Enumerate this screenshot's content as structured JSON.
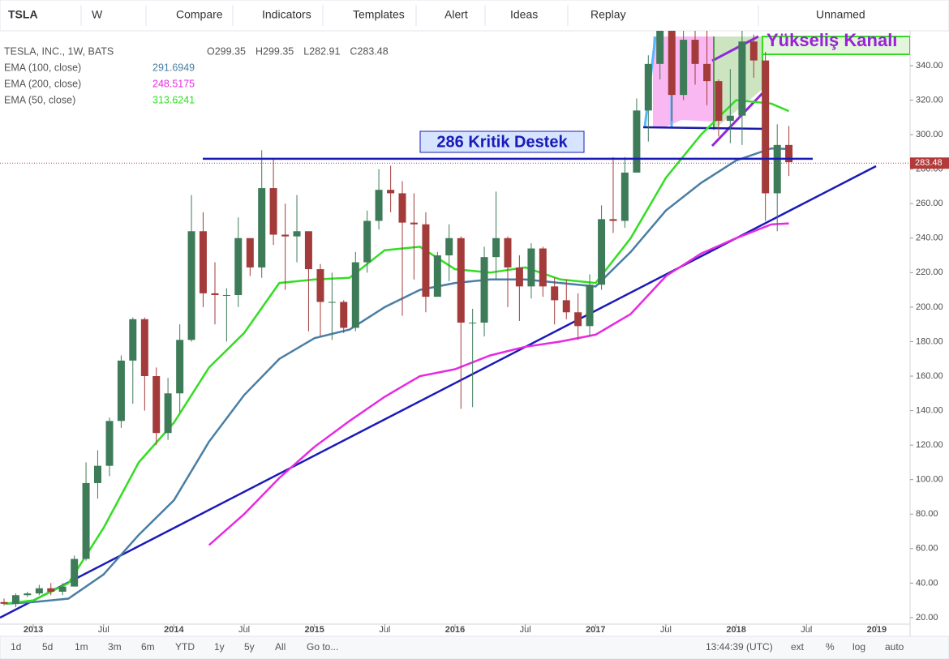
{
  "toolbar": {
    "symbol": "TSLA",
    "interval": "W",
    "buttons": [
      "Compare",
      "Indicators",
      "Templates",
      "Alert",
      "Ideas",
      "Replay"
    ],
    "layout": "Unnamed"
  },
  "bottom_bar": {
    "ranges": [
      "1d",
      "5d",
      "1m",
      "3m",
      "6m",
      "YTD",
      "1y",
      "5y",
      "All"
    ],
    "goto": "Go to...",
    "time": "13:44:39 (UTC)",
    "options": [
      "ext",
      "%",
      "log",
      "auto"
    ]
  },
  "chart_data": {
    "type": "candlestick",
    "title": "TESLA, INC., 1W, BATS",
    "ohlc": [
      {
        "key": "O",
        "value": 299.35
      },
      {
        "key": "H",
        "value": 299.35
      },
      {
        "key": "L",
        "value": 282.91
      },
      {
        "key": "C",
        "value": 283.48
      }
    ],
    "last_price": 283.48,
    "up_color": "#3d7b59",
    "down_color": "#a33b3b",
    "xlim": [
      2012.763,
      2019.237
    ],
    "xticks": [
      2013,
      {
        "value": 2013.5,
        "label": "Jul"
      },
      2014,
      {
        "value": 2014.5,
        "label": "Jul"
      },
      2015,
      {
        "value": 2015.5,
        "label": "Jul"
      },
      2016,
      {
        "value": 2016.5,
        "label": "Jul"
      },
      2017,
      {
        "value": 2017.5,
        "label": "Jul"
      },
      2018,
      {
        "value": 2018.5,
        "label": "Jul"
      },
      2019
    ],
    "ylim": [
      16.2,
      360.2
    ],
    "yticks": [
      {
        "value": 20,
        "label": "20.00"
      },
      {
        "value": 40,
        "label": "40.00"
      },
      {
        "value": 60,
        "label": "60.00"
      },
      {
        "value": 80,
        "label": "80.00"
      },
      {
        "value": 100,
        "label": "100.00"
      },
      {
        "value": 120,
        "label": "120.00"
      },
      {
        "value": 140,
        "label": "140.00"
      },
      {
        "value": 160,
        "label": "160.00"
      },
      {
        "value": 180,
        "label": "180.00"
      },
      {
        "value": 200,
        "label": "200.00"
      },
      {
        "value": 220,
        "label": "220.00"
      },
      {
        "value": 240,
        "label": "240.00"
      },
      {
        "value": 260,
        "label": "260.00"
      },
      {
        "value": 280,
        "label": "280.00"
      },
      {
        "value": 300,
        "label": "300.00"
      },
      {
        "value": 320,
        "label": "320.00"
      },
      {
        "value": 340,
        "label": "340.00"
      }
    ],
    "grid": false,
    "x": [
      2012.792,
      2012.875,
      2012.958,
      2013.042,
      2013.125,
      2013.208,
      2013.292,
      2013.375,
      2013.458,
      2013.542,
      2013.625,
      2013.708,
      2013.792,
      2013.875,
      2013.958,
      2014.042,
      2014.125,
      2014.208,
      2014.292,
      2014.375,
      2014.458,
      2014.542,
      2014.625,
      2014.708,
      2014.792,
      2014.875,
      2014.958,
      2015.042,
      2015.125,
      2015.208,
      2015.292,
      2015.375,
      2015.458,
      2015.542,
      2015.625,
      2015.708,
      2015.792,
      2015.875,
      2015.958,
      2016.042,
      2016.125,
      2016.208,
      2016.292,
      2016.375,
      2016.458,
      2016.542,
      2016.625,
      2016.708,
      2016.792,
      2016.875,
      2016.958,
      2017.042,
      2017.125,
      2017.208,
      2017.292,
      2017.375,
      2017.458,
      2017.542,
      2017.625,
      2017.708,
      2017.792,
      2017.875,
      2017.958,
      2018.042,
      2018.125,
      2018.208,
      2018.292,
      2018.375
    ],
    "open": [
      29,
      28,
      33,
      34,
      37,
      35,
      38,
      54,
      98,
      108,
      134,
      169,
      193,
      160,
      127,
      150,
      181,
      244,
      208,
      207,
      207,
      240,
      223,
      269,
      242,
      241,
      244,
      222,
      203,
      203,
      188,
      226,
      250,
      268,
      266,
      249,
      248,
      206,
      230,
      240,
      191,
      191,
      229,
      240,
      223,
      212,
      234,
      212,
      204,
      197,
      189,
      213,
      251,
      250,
      278,
      314,
      341,
      361,
      323,
      355,
      341,
      331,
      308,
      311,
      354,
      343,
      266,
      294
    ],
    "high": [
      31,
      34,
      35,
      39,
      40,
      40,
      56,
      110,
      117,
      136,
      172,
      194,
      194,
      165,
      159,
      190,
      265,
      255,
      226,
      211,
      252,
      240,
      291,
      286,
      260,
      265,
      243,
      225,
      220,
      204,
      232,
      256,
      280,
      282,
      273,
      266,
      255,
      232,
      248,
      241,
      199,
      235,
      267,
      241,
      230,
      237,
      235,
      217,
      216,
      208,
      219,
      259,
      287,
      287,
      321,
      346,
      387,
      366,
      365,
      369,
      362,
      332,
      338,
      361,
      358,
      348,
      306,
      305
    ],
    "low": [
      27,
      26,
      32,
      33,
      33,
      33,
      38,
      53,
      89,
      102,
      130,
      144,
      140,
      120,
      123,
      139,
      180,
      200,
      190,
      180,
      200,
      218,
      217,
      236,
      210,
      226,
      186,
      183,
      181,
      185,
      186,
      220,
      245,
      255,
      195,
      216,
      197,
      208,
      215,
      141,
      142,
      183,
      216,
      200,
      192,
      205,
      206,
      190,
      193,
      181,
      183,
      210,
      243,
      246,
      278,
      296,
      332,
      308,
      320,
      329,
      317,
      299,
      295,
      294,
      333,
      250,
      244,
      276
    ],
    "close": [
      28,
      33,
      34,
      37,
      35,
      38,
      54,
      98,
      108,
      134,
      169,
      193,
      160,
      127,
      150,
      181,
      244,
      208,
      207,
      207,
      240,
      223,
      269,
      242,
      241,
      244,
      222,
      203,
      203,
      188,
      226,
      250,
      268,
      266,
      249,
      248,
      206,
      230,
      240,
      191,
      191,
      229,
      240,
      223,
      212,
      234,
      212,
      204,
      197,
      189,
      213,
      251,
      250,
      278,
      314,
      341,
      361,
      323,
      355,
      341,
      331,
      308,
      311,
      354,
      343,
      266,
      294,
      284
    ],
    "series": [
      {
        "name": "EMA (100, close)",
        "color": "#4a7ea3",
        "legend_value": 291.6949,
        "x": [
          2012.8,
          2013.0,
          2013.25,
          2013.5,
          2013.75,
          2014.0,
          2014.25,
          2014.5,
          2014.75,
          2015.0,
          2015.25,
          2015.5,
          2015.75,
          2016.0,
          2016.25,
          2016.5,
          2016.75,
          2017.0,
          2017.25,
          2017.5,
          2017.75,
          2018.0,
          2018.25,
          2018.375
        ],
        "values": [
          28,
          29,
          31,
          45,
          68,
          88,
          122,
          149,
          170,
          182,
          187,
          200,
          210,
          214,
          216,
          216,
          214,
          212,
          232,
          256,
          272,
          285,
          292,
          291.6949
        ]
      },
      {
        "name": "EMA (200, close)",
        "color": "#e62ae0",
        "legend_value": 248.5175,
        "x": [
          2012.8,
          2013.0,
          2013.25,
          2013.5,
          2013.75,
          2014.0,
          2014.25,
          2014.5,
          2014.75,
          2015.0,
          2015.25,
          2015.5,
          2015.75,
          2016.0,
          2016.25,
          2016.5,
          2016.75,
          2017.0,
          2017.25,
          2017.5,
          2017.75,
          2018.0,
          2018.25,
          2018.375
        ],
        "values": [
          null,
          null,
          null,
          null,
          null,
          null,
          62,
          80,
          101,
          119,
          134,
          148,
          160,
          164,
          172,
          177,
          180,
          184,
          196,
          218,
          231,
          240,
          248,
          248.5175
        ]
      },
      {
        "name": "EMA (50, close)",
        "color": "#33dd22",
        "legend_value": 313.6241,
        "x": [
          2012.8,
          2013.0,
          2013.25,
          2013.5,
          2013.75,
          2014.0,
          2014.25,
          2014.5,
          2014.75,
          2015.0,
          2015.25,
          2015.5,
          2015.75,
          2016.0,
          2016.25,
          2016.5,
          2016.75,
          2017.0,
          2017.25,
          2017.5,
          2017.75,
          2018.0,
          2018.25,
          2018.375
        ],
        "values": [
          28,
          30,
          40,
          72,
          110,
          133,
          165,
          185,
          214,
          216,
          217,
          233,
          235,
          222,
          220,
          223,
          216,
          214,
          240,
          275,
          300,
          320,
          318,
          313.6241
        ]
      }
    ],
    "level": {
      "label": "286 Kritik Destek",
      "value": 286
    },
    "annotation": "Yükseliş Kanalı"
  }
}
